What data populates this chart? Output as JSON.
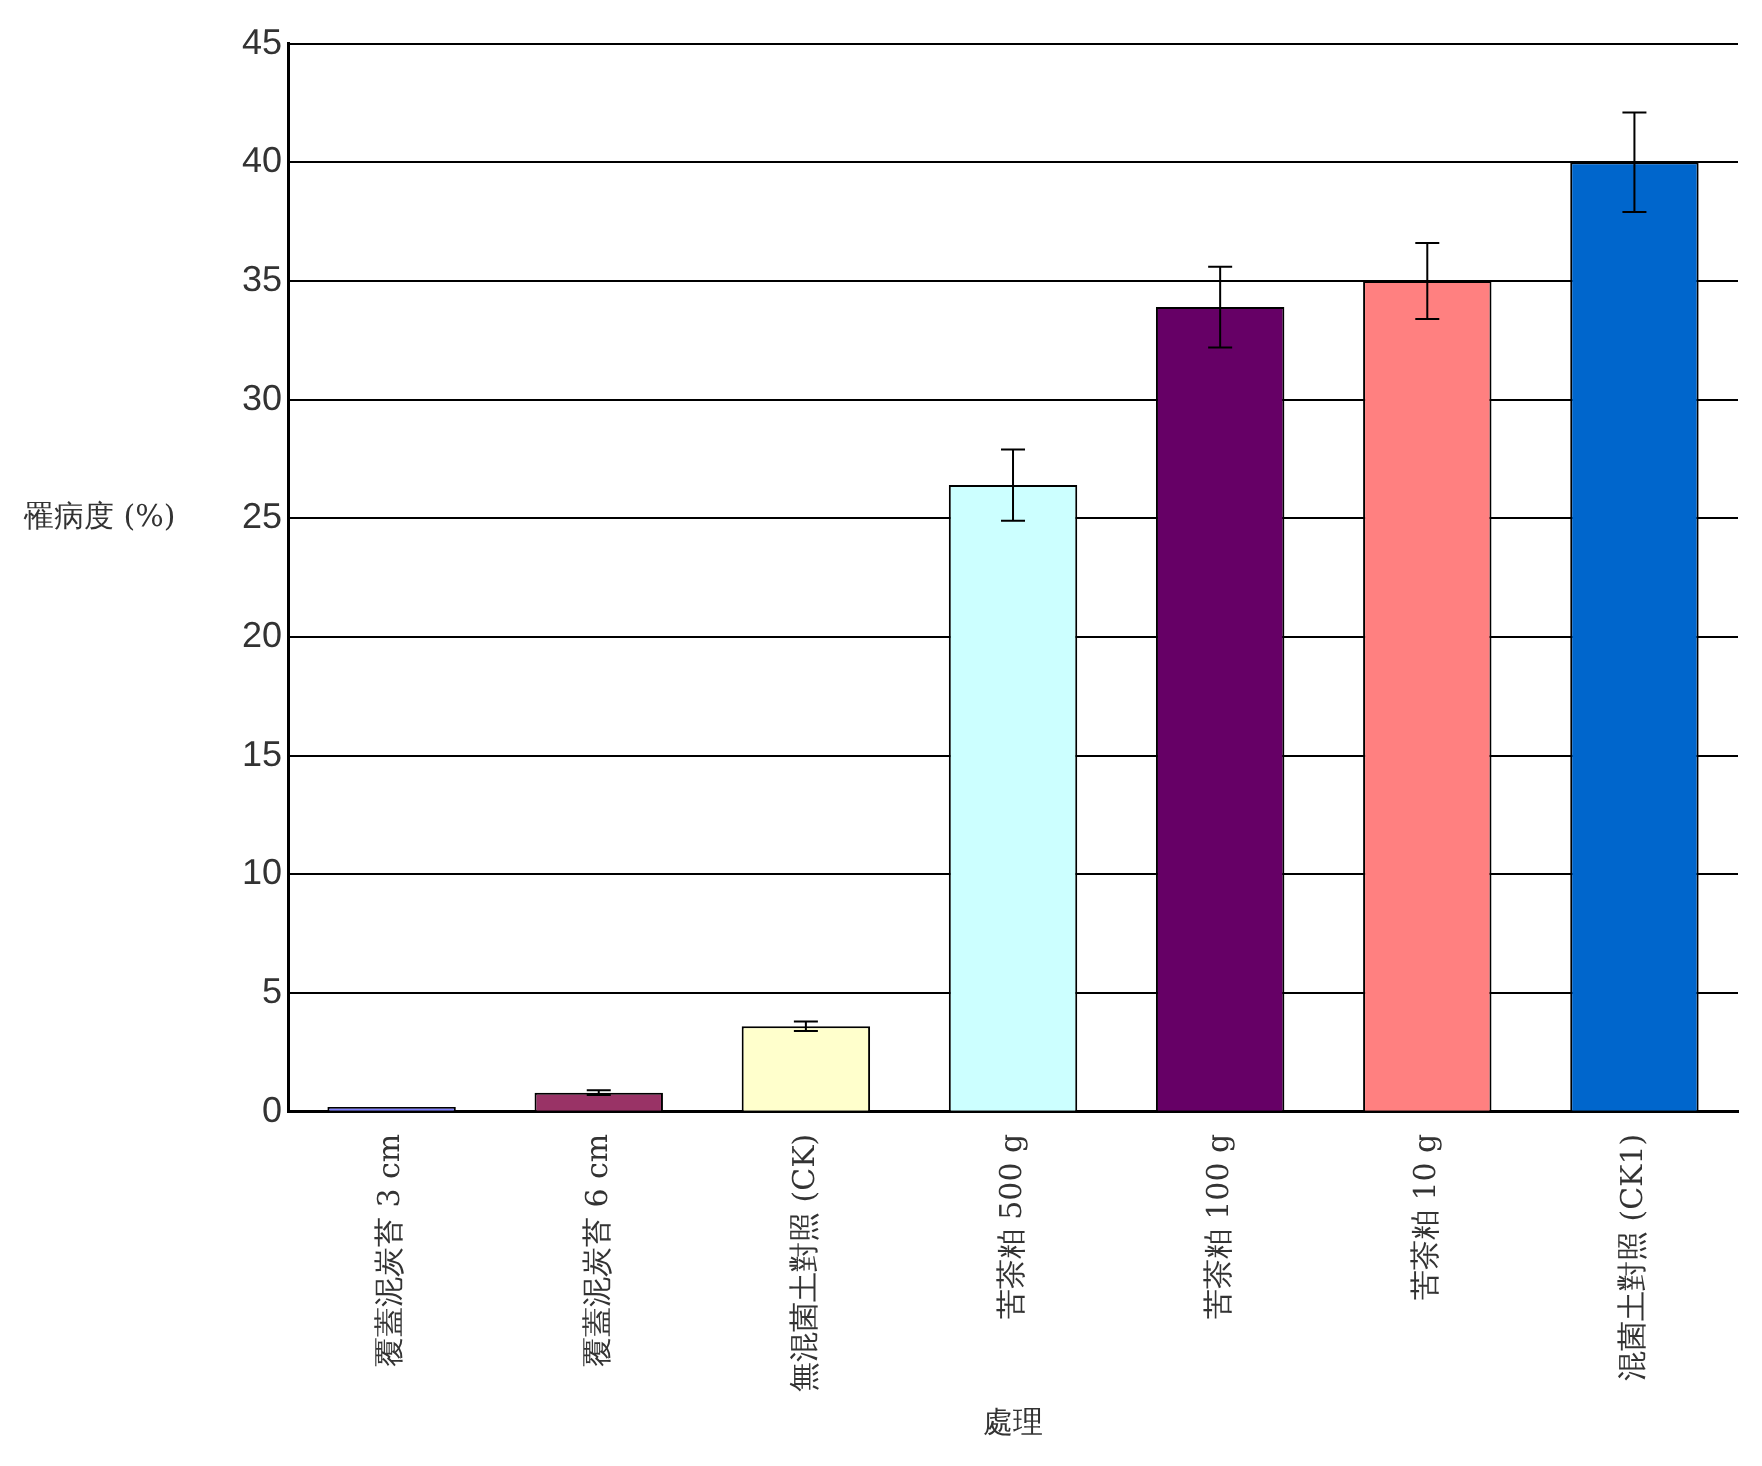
{
  "chart_data": {
    "type": "bar",
    "xlabel": "處理",
    "ylabel": "罹病度 (%)",
    "categories": [
      "覆蓋泥炭苔 3 cm",
      "覆蓋泥炭苔 6 cm",
      "無混菌土對照 (CK)",
      "苦茶粕 500 g",
      "苦茶粕 100 g",
      "苦茶粕 10 g",
      "混菌土對照 (CK1)"
    ],
    "values": [
      0.2,
      0.8,
      3.6,
      26.4,
      33.9,
      35.0,
      40.0
    ],
    "colors": [
      "#8080ff",
      "#993366",
      "#ffffcc",
      "#ccffff",
      "#660066",
      "#ff8080",
      "#0066cc"
    ],
    "errors": [
      null,
      0.1,
      0.2,
      1.5,
      1.7,
      1.6,
      2.1
    ],
    "ylim": [
      0,
      45
    ],
    "yticks": [
      0,
      5,
      10,
      15,
      20,
      25,
      30,
      35,
      40,
      45
    ],
    "grid": "y",
    "legend": false
  }
}
